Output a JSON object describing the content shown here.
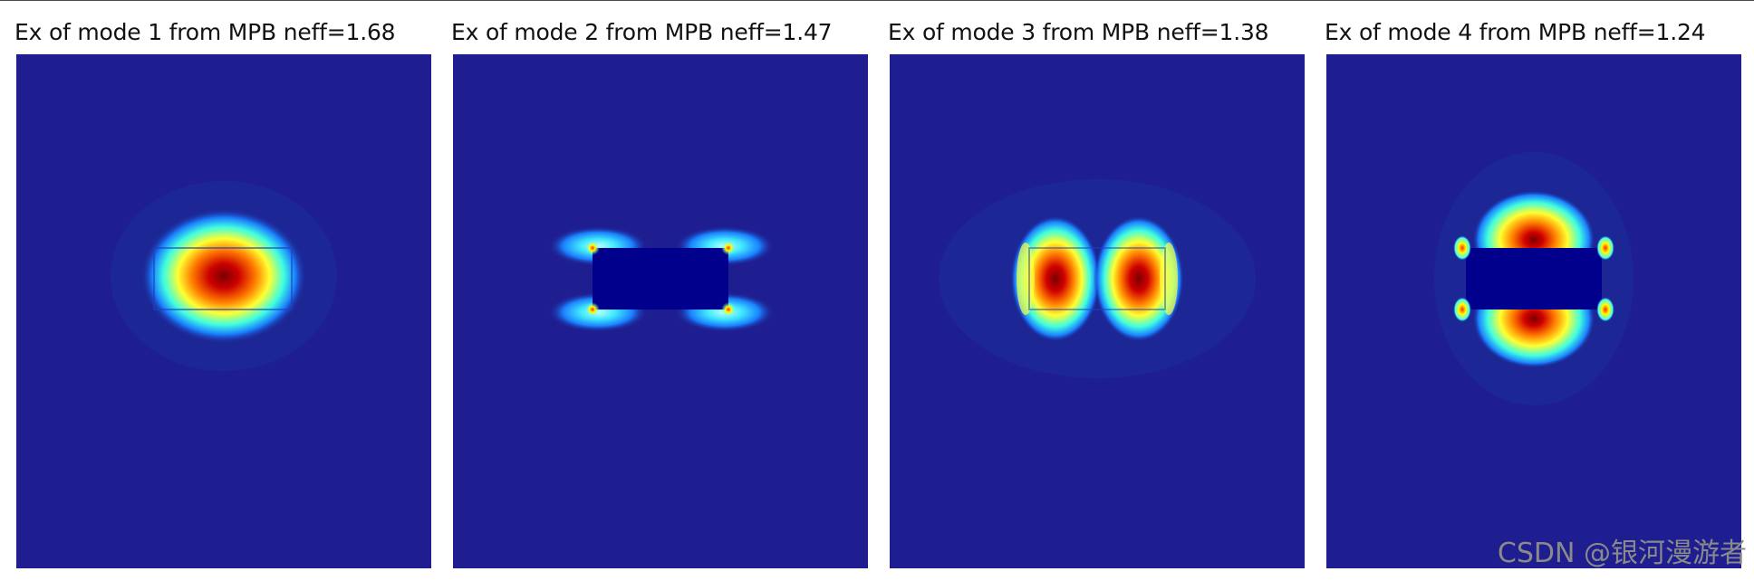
{
  "panels": [
    {
      "title": "Ex of mode 1 from MPB neff=1.68",
      "mode": 1,
      "neff": 1.68
    },
    {
      "title": "Ex of mode 2 from MPB neff=1.47",
      "mode": 2,
      "neff": 1.47
    },
    {
      "title": "Ex of mode 3 from MPB neff=1.38",
      "mode": 3,
      "neff": 1.38
    },
    {
      "title": "Ex of mode 4 from MPB neff=1.24",
      "mode": 4,
      "neff": 1.24
    }
  ],
  "colormap": {
    "background": "#1e1e90",
    "core": "#00008c",
    "cyan": "#00ffff",
    "yellow": "#ffff00",
    "red": "#d40000",
    "dark_red": "#800000"
  },
  "watermark": "CSDN @银河漫游者"
}
